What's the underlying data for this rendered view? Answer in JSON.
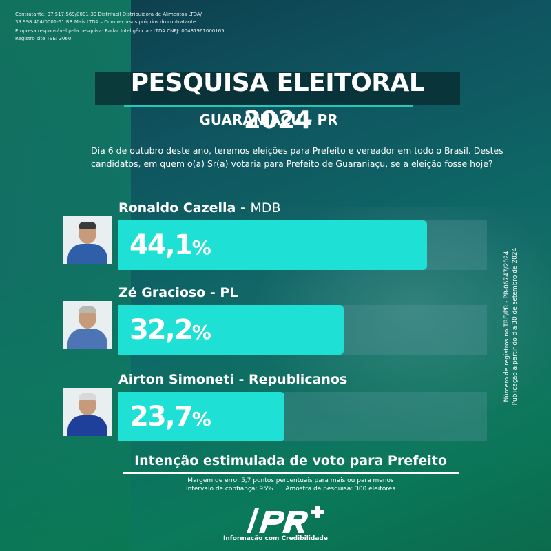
{
  "header": {
    "line1": "Contratante: 37.517.569/0001-39 Distrifacil Distribuidora de Alimentos LTDA/",
    "line2": "39.998.404/0001-51 RR Mais LTDA – Com recursos próprios do contratante",
    "line3": "Empresa responsável pela pesquisa: Radar Inteligência - LTDA CNPJ: 00481961000165",
    "line4": "Registro site TSE: 3060"
  },
  "title": "PESQUISA ELEITORAL 2024",
  "subtitle": "GUARANIAÇU - PR",
  "question": "Dia 6 de outubro deste ano, teremos eleições para  Prefeito e vereador em todo o Brasil. Destes candidatos, em quem o(a) Sr(a) votaria para Prefeito de Guaraniaçu, se a eleição fosse hoje?",
  "chart_data": {
    "type": "bar",
    "orientation": "horizontal",
    "categories": [
      "Ronaldo Cazella - MDB",
      "Zé Gracioso - PL",
      "Airton Simoneti - Republicanos"
    ],
    "values": [
      44.1,
      32.2,
      23.7
    ],
    "value_labels": [
      "44,1",
      "32,2",
      "23,7"
    ],
    "unit": "%",
    "title": "Intenção estimulada de voto para Prefeito",
    "xlim": [
      0,
      100
    ],
    "colors": {
      "bar": "#1fe0d4",
      "track": "#5a969b"
    }
  },
  "candidates": [
    {
      "name": "Ronaldo Cazella",
      "sep": " - ",
      "party": "MDB",
      "party_bold": false,
      "value": "44,1",
      "pct": "%",
      "hair": "#3a3a3a",
      "shirt": "#2e5fa8"
    },
    {
      "name": "Zé Gracioso",
      "sep": " - ",
      "party": "PL",
      "party_bold": true,
      "value": "32,2",
      "pct": "%",
      "hair": "#b8b8b0",
      "shirt": "#4d74b4"
    },
    {
      "name": "Airton Simoneti",
      "sep": " - ",
      "party": "Republicanos",
      "party_bold": true,
      "value": "23,7",
      "pct": "%",
      "hair": "#d8d8d8",
      "shirt": "#1e3f9a"
    }
  ],
  "footer": {
    "title": "Intenção estimulada de voto para Prefeito",
    "margin": "Margem de erro: 5,7 pontos percentuais para mais ou para menos",
    "confidence": "Intervalo de confiança: 95%",
    "sample": "Amostra da pesquisa: 300 eleitores"
  },
  "side": {
    "line1": "Número de registros no TRE/PR - PR-06747/2024",
    "line2": "Publicação a partir do dia 30 de setembro de 2024"
  },
  "logo": {
    "mark": "PR+",
    "tagline": "Informação com Credibilidade"
  }
}
